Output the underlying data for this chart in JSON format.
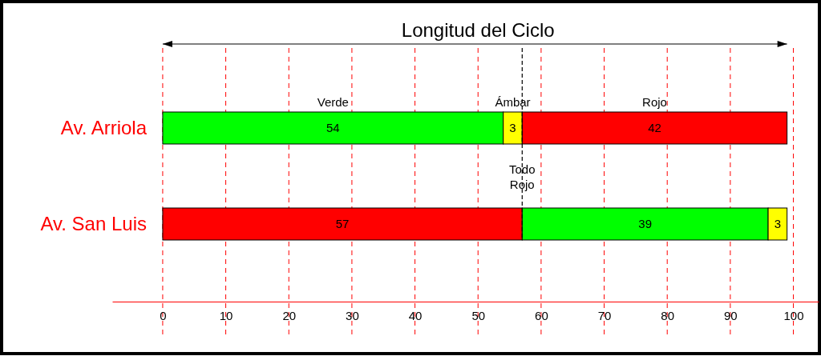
{
  "chart_data": {
    "type": "bar",
    "orientation": "horizontal",
    "stacked": true,
    "title": "Longitud del Ciclo",
    "categories": [
      "Av. Arriola",
      "Av. San Luis"
    ],
    "series": [
      {
        "colors": [
          "#00ff00",
          "#ff0000"
        ],
        "values": [
          54,
          57
        ]
      },
      {
        "colors": [
          "#ffff00",
          "#00ff00"
        ],
        "values": [
          3,
          39
        ]
      },
      {
        "colors": [
          "#ff0000",
          "#ffff00"
        ],
        "values": [
          42,
          3
        ]
      }
    ],
    "data_labels": true,
    "xlim": [
      -8,
      104
    ],
    "xticks": [
      0,
      10,
      20,
      30,
      40,
      50,
      60,
      70,
      80,
      90,
      100
    ],
    "grid": "x",
    "ref_lines": [
      {
        "axis": "x",
        "value": 57,
        "label": "Todo Rojo",
        "color": "#000000",
        "line_style": "dashed"
      }
    ],
    "annotations": [
      "Verde",
      "Ámbar",
      "Rojo"
    ]
  }
}
